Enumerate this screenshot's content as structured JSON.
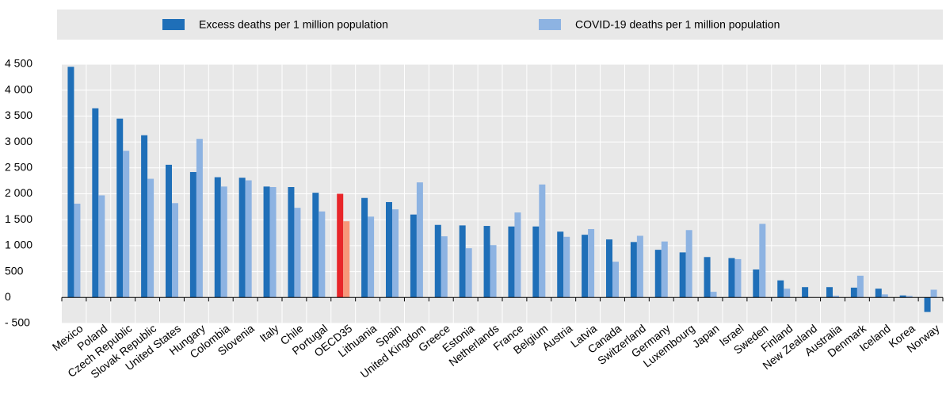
{
  "chart_data": {
    "type": "bar",
    "categories": [
      "Mexico",
      "Poland",
      "Czech Republic",
      "Slovak Republic",
      "United States",
      "Hungary",
      "Colombia",
      "Slovenia",
      "Italy",
      "Chile",
      "Portugal",
      "OECD35",
      "Lithuania",
      "Spain",
      "United Kingdom",
      "Greece",
      "Estonia",
      "Netherlands",
      "France",
      "Belgium",
      "Austria",
      "Latvia",
      "Canada",
      "Switzerland",
      "Germany",
      "Luxembourg",
      "Japan",
      "Israel",
      "Sweden",
      "Finland",
      "New Zealand",
      "Australia",
      "Denmark",
      "Iceland",
      "Korea",
      "Norway"
    ],
    "series": [
      {
        "name": "Excess deaths per 1 million population",
        "color": "#1f6fb8",
        "values": [
          4450,
          3650,
          3450,
          3130,
          2560,
          2420,
          2320,
          2310,
          2140,
          2130,
          2020,
          2000,
          1920,
          1840,
          1600,
          1400,
          1390,
          1380,
          1370,
          1370,
          1270,
          1210,
          1120,
          1070,
          920,
          870,
          780,
          760,
          540,
          330,
          200,
          200,
          190,
          170,
          40,
          -280
        ]
      },
      {
        "name": "COVID-19 deaths per 1 million population",
        "color": "#8db3e2",
        "values": [
          1810,
          1970,
          2830,
          2290,
          1820,
          3060,
          2140,
          2260,
          2130,
          1730,
          1660,
          1470,
          1560,
          1700,
          2220,
          1180,
          950,
          1010,
          1640,
          2180,
          1170,
          1320,
          690,
          1190,
          1080,
          1300,
          110,
          740,
          1420,
          170,
          5,
          35,
          420,
          60,
          30,
          150
        ]
      }
    ],
    "highlight": {
      "index": 11,
      "colors": [
        "#e8262a",
        "#f7977a"
      ]
    },
    "ylim": [
      -500,
      4500
    ],
    "yticks": [
      {
        "value": -500,
        "label": "- 500"
      },
      0,
      500,
      {
        "value": 1000,
        "label": "1 000"
      },
      {
        "value": 1500,
        "label": "1 500"
      },
      {
        "value": 2000,
        "label": "2 000"
      },
      {
        "value": 2500,
        "label": "2 500"
      },
      {
        "value": 3000,
        "label": "3 000"
      },
      {
        "value": 3500,
        "label": "3 500"
      },
      {
        "value": 4000,
        "label": "4 000"
      },
      {
        "value": 4500,
        "label": "4 500"
      }
    ],
    "grid": true
  }
}
